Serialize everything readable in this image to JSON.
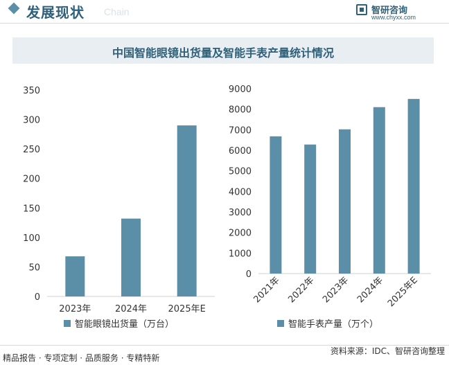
{
  "header": {
    "title": "发展现状",
    "title_en": "Chain",
    "logo_name": "智研咨询",
    "logo_url": "www.chyxx.com"
  },
  "chart_title": "中国智能眼镜出货量及智能手表产量统计情况",
  "source": "资料来源：IDC、智研咨询整理",
  "footer_text": "精品报告 · 专项定制 · 品质服务 · 专精特新",
  "colors": {
    "bar": "#5b8fa8",
    "title": "#2f6079"
  },
  "chart_data": [
    {
      "type": "bar",
      "categories": [
        "2023年",
        "2024年",
        "2025年E"
      ],
      "series": [
        {
          "name": "智能眼镜出货量（万台）",
          "values": [
            68,
            132,
            290
          ]
        }
      ],
      "ylim": [
        0,
        350
      ],
      "yticks": [
        0,
        50,
        100,
        150,
        200,
        250,
        300,
        350
      ],
      "grid": false,
      "legend": "bottom"
    },
    {
      "type": "bar",
      "categories": [
        "2021年",
        "2022年",
        "2023年",
        "2024年",
        "2025年E"
      ],
      "series": [
        {
          "name": "智能手表产量（万个）",
          "values": [
            6680,
            6280,
            7020,
            8100,
            8500
          ]
        }
      ],
      "ylim": [
        0,
        9000
      ],
      "yticks": [
        0,
        1000,
        2000,
        3000,
        4000,
        5000,
        6000,
        7000,
        8000,
        9000
      ],
      "grid": false,
      "legend": "bottom",
      "xtick_rotation": "rotated"
    }
  ]
}
